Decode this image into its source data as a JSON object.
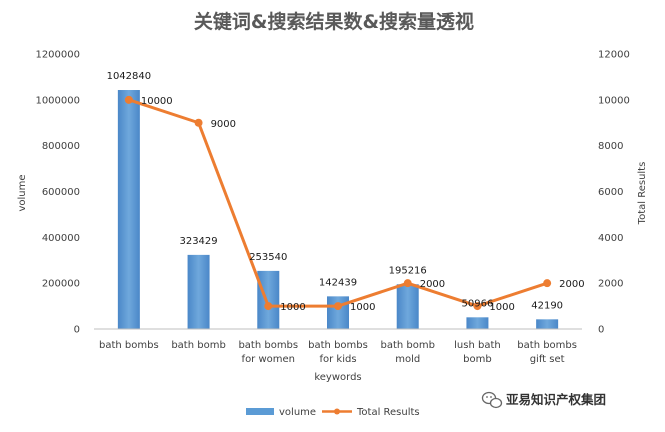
{
  "chart_data": {
    "type": "bar",
    "title": "关键词&搜索结果数&搜索量透视",
    "xlabel": "keywords",
    "ylabel": "volume",
    "y2label": "Total Results",
    "categories": [
      [
        "bath bombs"
      ],
      [
        "bath bomb"
      ],
      [
        "bath bombs",
        "for women"
      ],
      [
        "bath bombs",
        "for kids"
      ],
      [
        "bath bomb",
        "mold"
      ],
      [
        "lush bath",
        "bomb"
      ],
      [
        "bath bombs",
        "gift set"
      ]
    ],
    "ylim": [
      0,
      1200000
    ],
    "yticks": [
      "0",
      "200000",
      "400000",
      "600000",
      "800000",
      "1000000",
      "1200000"
    ],
    "y2lim": [
      0,
      12000
    ],
    "y2ticks": [
      "0",
      "2000",
      "4000",
      "6000",
      "8000",
      "10000",
      "12000"
    ],
    "grid": false,
    "legend_position": "bottom",
    "series": [
      {
        "name": "volume",
        "type": "bar",
        "axis": "left",
        "color": "#5b9bd5",
        "values": [
          1042840,
          323429,
          253540,
          142439,
          195216,
          50966,
          42190
        ],
        "labels": [
          "1042840",
          "323429",
          "253540",
          "142439",
          "195216",
          "50966",
          "42190"
        ]
      },
      {
        "name": "Total Results",
        "type": "line",
        "axis": "right",
        "color": "#ed7d31",
        "values": [
          10000,
          9000,
          1000,
          1000,
          2000,
          1000,
          2000
        ],
        "labels": [
          "10000",
          "9000",
          "1000",
          "1000",
          "2000",
          "1000",
          "2000"
        ]
      }
    ]
  },
  "watermark": {
    "text": "亚易知识产权集团",
    "icon": "wechat-icon"
  }
}
